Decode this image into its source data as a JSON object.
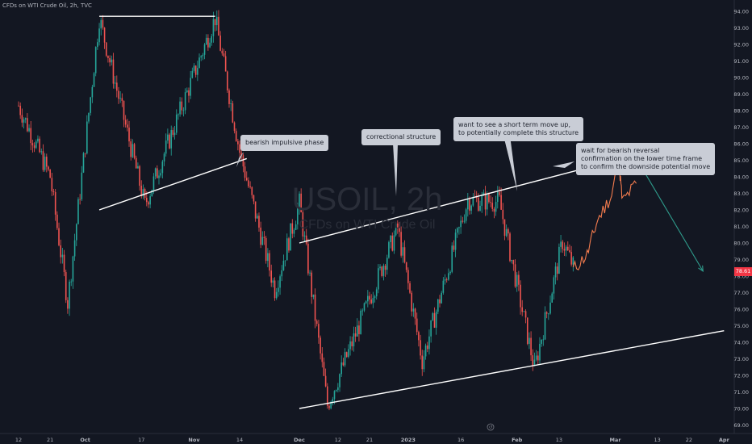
{
  "header": "CFDs on WTI Crude Oil, 2h, TVC",
  "watermark": {
    "symbol": "USOIL, 2h",
    "description": "CFDs on WTI Crude Oil"
  },
  "current_price": "78.61",
  "colors": {
    "background": "#131722",
    "up": "#26a69a",
    "down": "#ef5350",
    "projection": "#f57c4e",
    "arrow": "#2f9c8c",
    "trendline": "#ffffff",
    "callout": "#c9cdd6"
  },
  "annotations": [
    {
      "id": "bearish",
      "text": "bearish impulsive phase"
    },
    {
      "id": "corrective",
      "text": "correctional structure"
    },
    {
      "id": "moveup",
      "text": "want to see a short term move up,\nto potentially complete this structure"
    },
    {
      "id": "waitbearish",
      "text": "wait for bearish reversal\nconfirmation on the lower time frame\nto confirm the downside potential move"
    }
  ],
  "chart_data": {
    "type": "candlestick",
    "title": "CFDs on WTI Crude Oil, 2h, TVC",
    "y_axis": {
      "ticks": [
        "94.00",
        "93.00",
        "92.00",
        "91.00",
        "90.00",
        "89.00",
        "88.00",
        "87.00",
        "86.00",
        "85.00",
        "84.00",
        "83.00",
        "82.00",
        "81.00",
        "80.00",
        "79.00",
        "78.00",
        "77.00",
        "76.00",
        "75.00",
        "74.00",
        "73.00",
        "72.00",
        "71.00",
        "70.00",
        "69.00"
      ],
      "ylim": [
        68.8,
        94.4
      ]
    },
    "x_axis": {
      "ticks": [
        "12",
        "21",
        "Oct",
        "17",
        "Nov",
        "14",
        "Dec",
        "12",
        "21",
        "2023",
        "16",
        "Feb",
        "13",
        "Mar",
        "13",
        "22",
        "Apr",
        "12"
      ]
    },
    "key_points": [
      {
        "x": "2022-09-12",
        "y": 88.3
      },
      {
        "x": "2022-09-21",
        "y": 84.0
      },
      {
        "x": "2022-09-26",
        "y": 76.4
      },
      {
        "x": "2022-10-05",
        "y": 93.6
      },
      {
        "x": "2022-10-18",
        "y": 82.3
      },
      {
        "x": "2022-11-07",
        "y": 93.6
      },
      {
        "x": "2022-11-14",
        "y": 85.5
      },
      {
        "x": "2022-11-24",
        "y": 77.2
      },
      {
        "x": "2022-12-01",
        "y": 82.4
      },
      {
        "x": "2022-12-09",
        "y": 70.2
      },
      {
        "x": "2022-12-29",
        "y": 80.9
      },
      {
        "x": "2023-01-05",
        "y": 72.9
      },
      {
        "x": "2023-01-18",
        "y": 82.6
      },
      {
        "x": "2023-01-27",
        "y": 82.5
      },
      {
        "x": "2023-02-06",
        "y": 72.4
      },
      {
        "x": "2023-02-14",
        "y": 80.1
      },
      {
        "x": "2023-02-17",
        "y": 78.6
      }
    ],
    "last_price": 78.61,
    "projection": [
      {
        "x": "2023-02-17",
        "y": 78.4
      },
      {
        "x": "2023-02-21",
        "y": 79.3
      },
      {
        "x": "2023-02-24",
        "y": 81.4
      },
      {
        "x": "2023-02-28",
        "y": 82.9
      },
      {
        "x": "2023-03-02",
        "y": 85.1
      },
      {
        "x": "2023-03-03",
        "y": 82.5
      },
      {
        "x": "2023-03-07",
        "y": 83.6
      }
    ],
    "trendlines": [
      {
        "from": {
          "x": "2022-10-05",
          "y": 93.7
        },
        "to": {
          "x": "2022-11-07",
          "y": 93.7
        }
      },
      {
        "from": {
          "x": "2022-10-05",
          "y": 82.0
        },
        "to": {
          "x": "2022-11-16",
          "y": 85.1
        }
      },
      {
        "from": {
          "x": "2022-12-01",
          "y": 80.0
        },
        "to": {
          "x": "2023-03-03",
          "y": 85.1
        }
      },
      {
        "from": {
          "x": "2022-12-01",
          "y": 70.0
        },
        "to": {
          "x": "2023-04-01",
          "y": 74.7
        }
      }
    ],
    "arrow": {
      "from": {
        "x": "2023-03-09",
        "y": 84.4
      },
      "to": {
        "x": "2023-03-26",
        "y": 78.3
      }
    },
    "grid": false,
    "legend": "none"
  }
}
